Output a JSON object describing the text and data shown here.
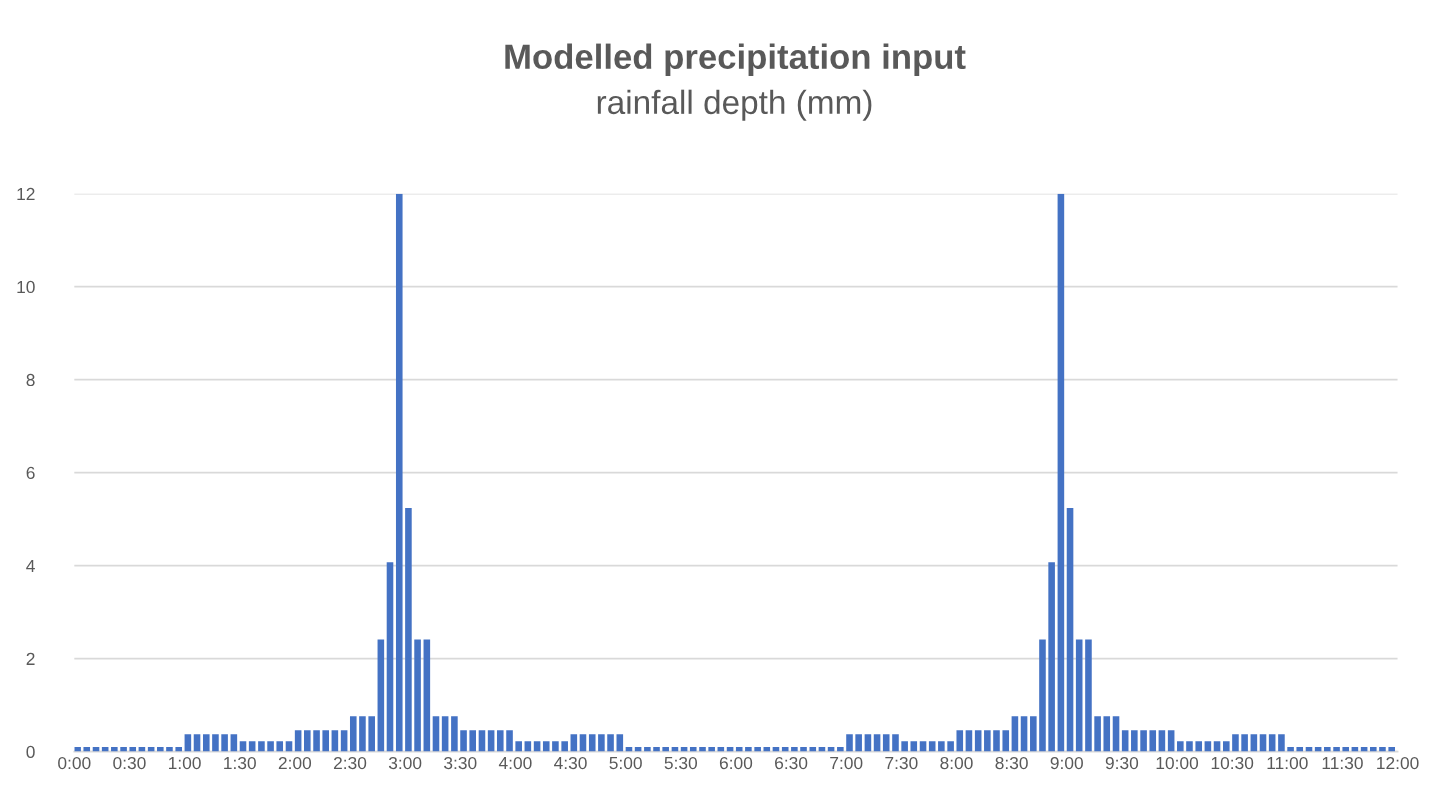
{
  "chart_data": {
    "type": "bar",
    "title": "Modelled precipitation input",
    "subtitle": "rainfall depth (mm)",
    "x": [
      0,
      0.083,
      0.167,
      0.25,
      0.333,
      0.417,
      0.5,
      0.583,
      0.667,
      0.75,
      0.833,
      0.917,
      1,
      1.083,
      1.167,
      1.25,
      1.333,
      1.417,
      1.5,
      1.583,
      1.667,
      1.75,
      1.833,
      1.917,
      2,
      2.083,
      2.167,
      2.25,
      2.333,
      2.417,
      2.5,
      2.583,
      2.667,
      2.75,
      2.833,
      2.917,
      3,
      3.083,
      3.167,
      3.25,
      3.333,
      3.417,
      3.5,
      3.583,
      3.667,
      3.75,
      3.833,
      3.917,
      4,
      4.083,
      4.167,
      4.25,
      4.333,
      4.417,
      4.5,
      4.583,
      4.667,
      4.75,
      4.833,
      4.917,
      5,
      5.083,
      5.167,
      5.25,
      5.333,
      5.417,
      5.5,
      5.583,
      5.667,
      5.75,
      5.833,
      5.917,
      6,
      6.083,
      6.167,
      6.25,
      6.333,
      6.417,
      6.5,
      6.583,
      6.667,
      6.75,
      6.833,
      6.917,
      7,
      7.083,
      7.167,
      7.25,
      7.333,
      7.417,
      7.5,
      7.583,
      7.667,
      7.75,
      7.833,
      7.917,
      8,
      8.083,
      8.167,
      8.25,
      8.333,
      8.417,
      8.5,
      8.583,
      8.667,
      8.75,
      8.833,
      8.917,
      9,
      9.083,
      9.167,
      9.25,
      9.333,
      9.417,
      9.5,
      9.583,
      9.667,
      9.75,
      9.833,
      9.917,
      10,
      10.083,
      10.167,
      10.25,
      10.333,
      10.417,
      10.5,
      10.583,
      10.667,
      10.75,
      10.833,
      10.917,
      11,
      11.083,
      11.167,
      11.25,
      11.333,
      11.417,
      11.5,
      11.583,
      11.667,
      11.75,
      11.833,
      11.917
    ],
    "values": [
      0.1,
      0.1,
      0.1,
      0.1,
      0.1,
      0.1,
      0.1,
      0.1,
      0.1,
      0.1,
      0.1,
      0.1,
      0.37,
      0.37,
      0.37,
      0.37,
      0.37,
      0.37,
      0.22,
      0.22,
      0.22,
      0.22,
      0.22,
      0.22,
      0.46,
      0.46,
      0.46,
      0.46,
      0.46,
      0.46,
      0.76,
      0.76,
      0.76,
      2.41,
      4.07,
      12,
      5.24,
      2.41,
      2.41,
      0.76,
      0.76,
      0.76,
      0.46,
      0.46,
      0.46,
      0.46,
      0.46,
      0.46,
      0.22,
      0.22,
      0.22,
      0.22,
      0.22,
      0.22,
      0.37,
      0.37,
      0.37,
      0.37,
      0.37,
      0.37,
      0.1,
      0.1,
      0.1,
      0.1,
      0.1,
      0.1,
      0.1,
      0.1,
      0.1,
      0.1,
      0.1,
      0.1,
      0.1,
      0.1,
      0.1,
      0.1,
      0.1,
      0.1,
      0.1,
      0.1,
      0.1,
      0.1,
      0.1,
      0.1,
      0.37,
      0.37,
      0.37,
      0.37,
      0.37,
      0.37,
      0.22,
      0.22,
      0.22,
      0.22,
      0.22,
      0.22,
      0.46,
      0.46,
      0.46,
      0.46,
      0.46,
      0.46,
      0.76,
      0.76,
      0.76,
      2.41,
      4.07,
      12,
      5.24,
      2.41,
      2.41,
      0.76,
      0.76,
      0.76,
      0.46,
      0.46,
      0.46,
      0.46,
      0.46,
      0.46,
      0.22,
      0.22,
      0.22,
      0.22,
      0.22,
      0.22,
      0.37,
      0.37,
      0.37,
      0.37,
      0.37,
      0.37,
      0.1,
      0.1,
      0.1,
      0.1,
      0.1,
      0.1,
      0.1,
      0.1,
      0.1,
      0.1,
      0.1,
      0.1
    ],
    "color": "#4472c4",
    "xlim": [
      0,
      12
    ],
    "xticks": [
      {
        "value": 0,
        "label": "0:00"
      },
      {
        "value": 0.5,
        "label": "0:30"
      },
      {
        "value": 1,
        "label": "1:00"
      },
      {
        "value": 1.5,
        "label": "1:30"
      },
      {
        "value": 2,
        "label": "2:00"
      },
      {
        "value": 2.5,
        "label": "2:30"
      },
      {
        "value": 3,
        "label": "3:00"
      },
      {
        "value": 3.5,
        "label": "3:30"
      },
      {
        "value": 4,
        "label": "4:00"
      },
      {
        "value": 4.5,
        "label": "4:30"
      },
      {
        "value": 5,
        "label": "5:00"
      },
      {
        "value": 5.5,
        "label": "5:30"
      },
      {
        "value": 6,
        "label": "6:00"
      },
      {
        "value": 6.5,
        "label": "6:30"
      },
      {
        "value": 7,
        "label": "7:00"
      },
      {
        "value": 7.5,
        "label": "7:30"
      },
      {
        "value": 8,
        "label": "8:00"
      },
      {
        "value": 8.5,
        "label": "8:30"
      },
      {
        "value": 9,
        "label": "9:00"
      },
      {
        "value": 9.5,
        "label": "9:30"
      },
      {
        "value": 10,
        "label": "10:00"
      },
      {
        "value": 10.5,
        "label": "10:30"
      },
      {
        "value": 11,
        "label": "11:00"
      },
      {
        "value": 11.5,
        "label": "11:30"
      },
      {
        "value": 12,
        "label": "12:00"
      }
    ],
    "ylim": [
      0,
      12
    ],
    "yticks": [
      0,
      2,
      4,
      6,
      8,
      10,
      12
    ],
    "grid": "y",
    "legend": false
  }
}
